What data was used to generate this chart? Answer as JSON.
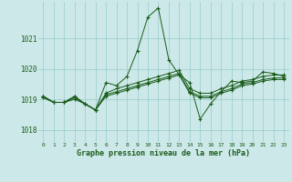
{
  "background_color": "#cce8e8",
  "grid_color": "#99cccc",
  "line_color": "#1a5c1a",
  "ylim": [
    1017.6,
    1022.2
  ],
  "xlim": [
    -0.5,
    23.5
  ],
  "yticks": [
    1018,
    1019,
    1020,
    1021
  ],
  "xticks": [
    0,
    1,
    2,
    3,
    4,
    5,
    6,
    7,
    8,
    9,
    10,
    11,
    12,
    13,
    14,
    15,
    16,
    17,
    18,
    19,
    20,
    21,
    22,
    23
  ],
  "xlabel": "Graphe pression niveau de la mer (hPa)",
  "series": [
    [
      1019.1,
      1018.9,
      1018.9,
      1019.1,
      1018.85,
      1018.65,
      1019.55,
      1019.45,
      1019.75,
      1020.6,
      1021.7,
      1022.0,
      1020.3,
      1019.8,
      1019.55,
      1018.35,
      1018.85,
      1019.25,
      1019.6,
      1019.55,
      1019.6,
      1019.9,
      1019.85,
      1019.75
    ],
    [
      1019.1,
      1018.9,
      1018.9,
      1019.1,
      1018.85,
      1018.65,
      1019.2,
      1019.35,
      1019.45,
      1019.55,
      1019.65,
      1019.75,
      1019.85,
      1019.95,
      1019.35,
      1019.2,
      1019.2,
      1019.35,
      1019.45,
      1019.6,
      1019.65,
      1019.75,
      1019.8,
      1019.8
    ],
    [
      1019.1,
      1018.9,
      1018.9,
      1019.05,
      1018.85,
      1018.65,
      1019.15,
      1019.25,
      1019.35,
      1019.45,
      1019.55,
      1019.65,
      1019.75,
      1019.85,
      1019.25,
      1019.1,
      1019.1,
      1019.25,
      1019.35,
      1019.5,
      1019.55,
      1019.65,
      1019.7,
      1019.7
    ],
    [
      1019.05,
      1018.9,
      1018.9,
      1019.0,
      1018.85,
      1018.65,
      1019.1,
      1019.2,
      1019.3,
      1019.4,
      1019.5,
      1019.6,
      1019.7,
      1019.8,
      1019.2,
      1019.05,
      1019.05,
      1019.2,
      1019.3,
      1019.45,
      1019.5,
      1019.6,
      1019.65,
      1019.65
    ]
  ]
}
